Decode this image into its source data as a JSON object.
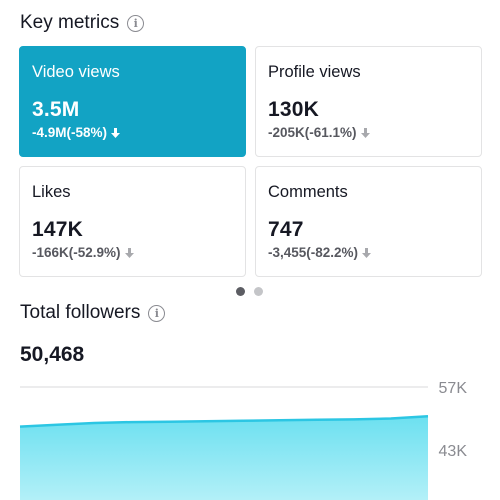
{
  "key_metrics": {
    "title": "Key metrics",
    "cards": [
      {
        "label": "Video views",
        "value": "3.5M",
        "delta": "-4.9M(-58%)",
        "active": true
      },
      {
        "label": "Profile views",
        "value": "130K",
        "delta": "-205K(-61.1%)",
        "active": false
      },
      {
        "label": "Likes",
        "value": "147K",
        "delta": "-166K(-52.9%)",
        "active": false
      },
      {
        "label": "Comments",
        "value": "747",
        "delta": "-3,455(-82.2%)",
        "active": false
      }
    ],
    "pagination": {
      "pages": 2,
      "current": 1
    }
  },
  "total_followers": {
    "title": "Total followers",
    "value": "50,468"
  },
  "colors": {
    "accent": "#12a3c4",
    "chart_line": "#2cc6e3",
    "chart_fill_top": "#6ce0f0",
    "chart_fill_bottom": "#b3f0f8",
    "text_primary": "#161823",
    "text_secondary": "#57585f"
  },
  "icons": {
    "info": "info-icon",
    "arrow": "arrow-down-icon"
  },
  "chart_data": {
    "type": "area",
    "title": "",
    "xlabel": "",
    "ylabel": "",
    "ylim": [
      29,
      57
    ],
    "y_ticks": [
      "57K",
      "43K"
    ],
    "series": [
      {
        "values": [
          48.2,
          48.6,
          49.0,
          49.2,
          49.3,
          49.4,
          49.5,
          49.6,
          49.7,
          49.8,
          50.0,
          50.5
        ]
      }
    ]
  }
}
